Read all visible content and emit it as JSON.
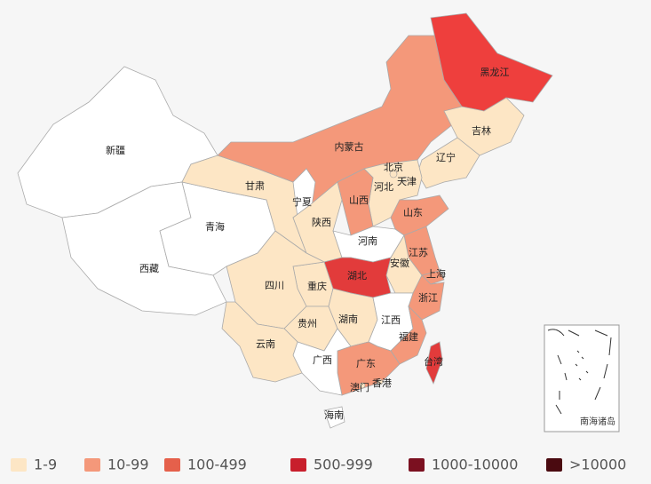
{
  "map": {
    "regions": [
      {
        "name": "新疆",
        "color": "#ffffff"
      },
      {
        "name": "西藏",
        "color": "#ffffff"
      },
      {
        "name": "青海",
        "color": "#ffffff"
      },
      {
        "name": "甘肃",
        "color": "#fde6c5"
      },
      {
        "name": "内蒙古",
        "color": "#f4987a"
      },
      {
        "name": "黑龙江",
        "color": "#ee3f3d"
      },
      {
        "name": "吉林",
        "color": "#fde6c5"
      },
      {
        "name": "辽宁",
        "color": "#fde6c5"
      },
      {
        "name": "河北",
        "color": "#fde6c5"
      },
      {
        "name": "宁夏",
        "color": "#ffffff"
      },
      {
        "name": "陕西",
        "color": "#fde6c5"
      },
      {
        "name": "山西",
        "color": "#f4987a"
      },
      {
        "name": "山东",
        "color": "#f4987a"
      },
      {
        "name": "河南",
        "color": "#ffffff"
      },
      {
        "name": "江苏",
        "color": "#f4987a"
      },
      {
        "name": "安徽",
        "color": "#fde6c5"
      },
      {
        "name": "上海",
        "color": "#f4987a"
      },
      {
        "name": "浙江",
        "color": "#f4987a"
      },
      {
        "name": "湖北",
        "color": "#e23b3b"
      },
      {
        "name": "重庆",
        "color": "#fde6c5"
      },
      {
        "name": "四川",
        "color": "#fde6c5"
      },
      {
        "name": "贵州",
        "color": "#fde6c5"
      },
      {
        "name": "湖南",
        "color": "#fde6c5"
      },
      {
        "name": "江西",
        "color": "#ffffff"
      },
      {
        "name": "福建",
        "color": "#f4987a"
      },
      {
        "name": "广东",
        "color": "#f4987a"
      },
      {
        "name": "广西",
        "color": "#ffffff"
      },
      {
        "name": "云南",
        "color": "#fde6c5"
      },
      {
        "name": "海南",
        "color": "#ffffff"
      },
      {
        "name": "台湾",
        "color": "#e23b3b"
      },
      {
        "name": "北京",
        "color": "#fde6c5"
      },
      {
        "name": "天津",
        "color": "#fde6c5"
      },
      {
        "name": "香港",
        "color": "#fde6c5"
      },
      {
        "name": "澳门",
        "color": "#fde6c5"
      }
    ],
    "inset_label": "南海诸岛"
  },
  "legend": {
    "items": [
      {
        "label": "1-9",
        "color": "#fde6c5"
      },
      {
        "label": "10-99",
        "color": "#f4987a"
      },
      {
        "label": "100-499",
        "color": "#e5604b"
      },
      {
        "label": "500-999",
        "color": "#c81f2c"
      },
      {
        "label": "1000-10000",
        "color": "#7b1020"
      },
      {
        "label": ">10000",
        "color": "#4a0a10"
      }
    ]
  }
}
